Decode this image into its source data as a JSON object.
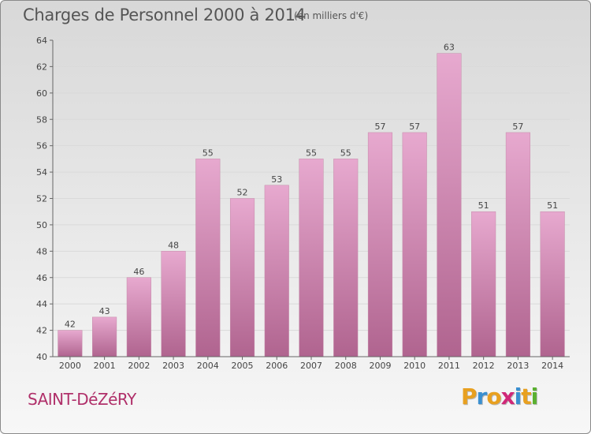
{
  "header": {
    "title": "Charges de Personnel 2000 à 2014",
    "subtitle": "(en milliers d'€)"
  },
  "footer": {
    "commune": "SAINT-DéZéRY",
    "logo_letters": [
      "P",
      "r",
      "o",
      "x",
      "i",
      "t",
      "i"
    ],
    "logo_colors": [
      "#e8a020",
      "#3a8fd0",
      "#e8a020",
      "#d02878",
      "#3a8fd0",
      "#e8a020",
      "#5ab030"
    ]
  },
  "colors": {
    "bar_top": "#e7a9cf",
    "bar_bottom": "#b0648f",
    "grid": "#d9d9d9",
    "axis_text": "#444444"
  },
  "chart_data": {
    "type": "bar",
    "title": "Charges de Personnel 2000 à 2014",
    "subtitle": "(en milliers d'€)",
    "categories": [
      "2000",
      "2001",
      "2002",
      "2003",
      "2004",
      "2005",
      "2006",
      "2007",
      "2008",
      "2009",
      "2010",
      "2011",
      "2012",
      "2013",
      "2014"
    ],
    "values": [
      42,
      43,
      46,
      48,
      55,
      52,
      53,
      55,
      55,
      57,
      57,
      63,
      51,
      57,
      51
    ],
    "ylim": [
      40,
      64
    ],
    "yticks": [
      40,
      42,
      44,
      46,
      48,
      50,
      52,
      54,
      56,
      58,
      60,
      62,
      64
    ],
    "grid": true,
    "data_labels": true
  }
}
